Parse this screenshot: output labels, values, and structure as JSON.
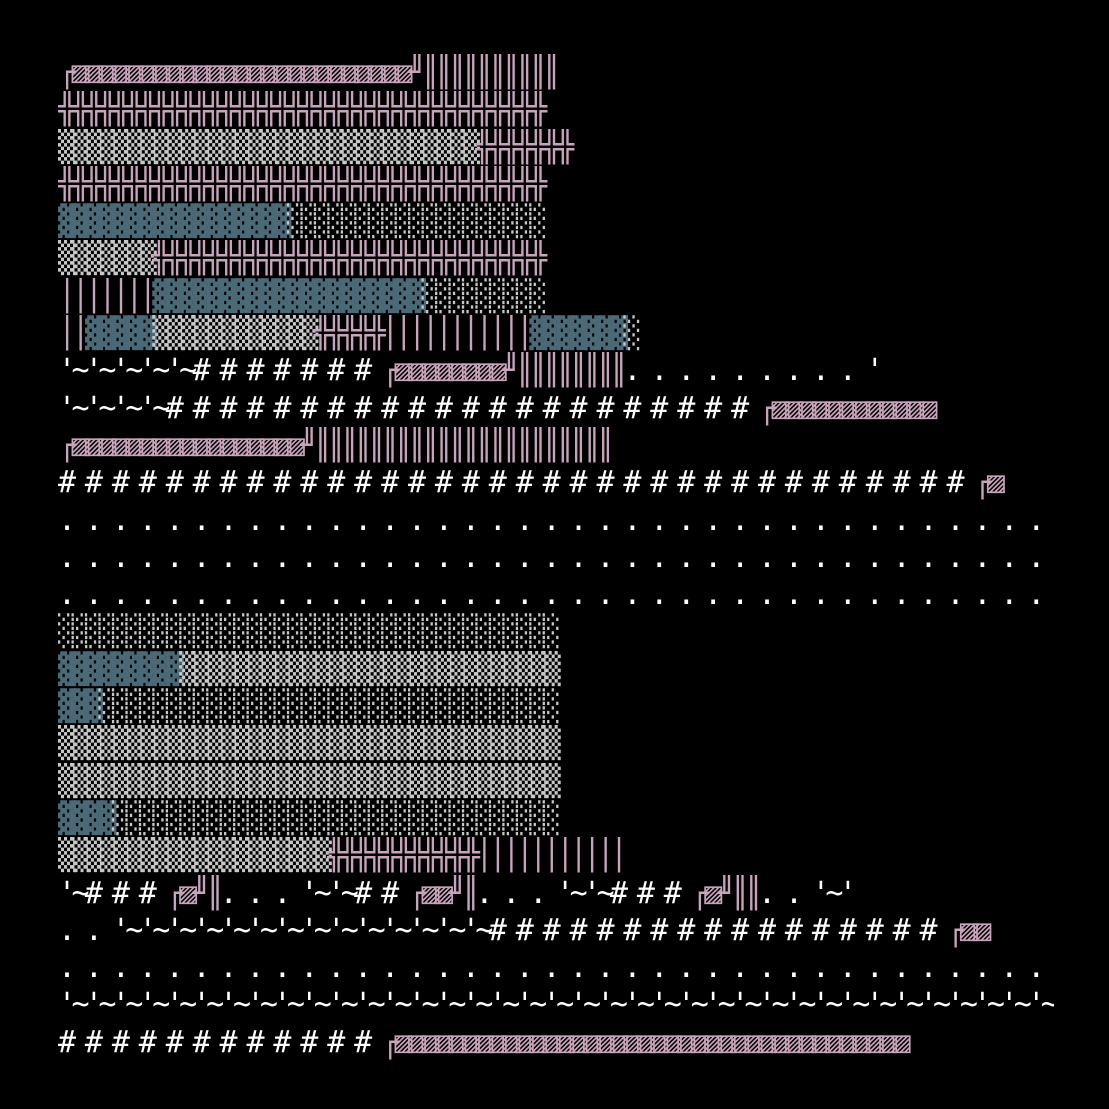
{
  "palette": {
    "background": "#000000",
    "text": "#ffffff",
    "rune": "#c8a4bc",
    "block": "#4a6a78",
    "shade": "#c8c8c8"
  },
  "art": {
    "rows": [
      [
        [
          "rune",
          "┌▨▨▨▨▨▨▨▨▨▨▨▨▨▨▨▨▨▨▨▨▨▨▨▨▨╜║║║║║║║║║║"
        ]
      ],
      [
        [
          "rune",
          "╬╬╬╬╬╬╬╬╬╬╬╬╬╬╬╬╬╬╬╬╬╬╬╬╬╬╬╬╬╬╬╬╬╬╬╬"
        ]
      ],
      [
        [
          "shade",
          "▒▒▒▒▒▒▒▒▒▒▒▒▒▒▒▒▒▒▒▒▒▒▒▒▒▒▒▒▒▒▒"
        ],
        [
          "rune",
          "╬╬╬╬╬╬╬"
        ]
      ],
      [
        [
          "rune",
          "╬╬╬╬╬╬╬╬╬╬╬╬╬╬╬╬╬╬╬╬╬╬╬╬╬╬╬╬╬╬╬╬╬╬╬╬"
        ]
      ],
      [
        [
          "block",
          "▓▓▓▓▓▓▓▓▓▓▓▓▓▓▓▓▓"
        ],
        [
          "shade",
          "░░░░░░░░░░░░░░░░░░░"
        ]
      ],
      [
        [
          "shade",
          "▒▒▒▒▒▒▒"
        ],
        [
          "rune",
          "╬╬╬╬╬╬╬╬╬╬╬╬╬╬╬╬╬╬╬╬╬╬╬╬╬╬╬╬╬"
        ]
      ],
      [
        [
          "rune",
          "│││││││"
        ],
        [
          "block",
          "▓▓▓▓▓▓▓▓▓▓▓▓▓▓▓▓▓▓▓▓"
        ],
        [
          "shade",
          "░░░░░░░░░"
        ]
      ],
      [
        [
          "rune",
          "││"
        ],
        [
          "block",
          "▓▓▓▓▓"
        ],
        [
          "shade",
          "▒▒▒▒▒▒▒▒▒▒▒▒"
        ],
        [
          "rune",
          "╬╬╬╬╬│││││││││││"
        ],
        [
          "block",
          "▓▓▓▓▓▓▓"
        ],
        [
          "shade",
          "░"
        ]
      ],
      [
        [
          "text",
          "'~'~'~'~'~# # # # # # # "
        ],
        [
          "rune",
          "┌▨▨▨▨▨▨▨▨╜║║║║║║║║"
        ],
        [
          "text",
          ". . . . . . . . . '"
        ]
      ],
      [
        [
          "text",
          "'~'~'~'~# # # # # # # # # # # # # # # # # # # # # # "
        ],
        [
          "rune",
          "┌▨▨▨▨▨▨▨▨▨▨▨▨"
        ]
      ],
      [
        [
          "rune",
          "┌▨▨▨▨▨▨▨▨▨▨▨▨▨▨▨▨▨╜║║║║║║║║║║║║║║║║║║║║║║"
        ]
      ],
      [
        [
          "text",
          "# # # # # # # # # # # # # # # # # # # # # # # # # # # # # # # # # # "
        ],
        [
          "rune",
          "┌▨"
        ]
      ],
      [
        [
          "text",
          ". . . . . . . . . . . . . . . . . . . . . . . . . . . . . . . . . . . . . ."
        ]
      ],
      [
        [
          "text",
          ". . . . . . . . . . . . . . . . . . . . . . . . . . . . . . . . . . . . . ."
        ]
      ],
      [
        [
          "text",
          ". . . . . . . . . . . . . . . . . . . . . . . . . . . . . . . . . . . . . ."
        ]
      ],
      [
        [
          "shade",
          "░░░░░░░░░░░░░░░░░░░░░░░░░░░░░░░░░░░░░"
        ]
      ],
      [
        [
          "block",
          "▓▓▓▓▓▓▓▓▓"
        ],
        [
          "shade",
          "▒▒▒▒▒▒▒▒▒▒▒▒▒▒▒▒▒▒▒▒▒▒▒▒▒▒▒▒"
        ]
      ],
      [
        [
          "block",
          "▓▓▓"
        ],
        [
          "shade",
          "░░░░░░░░░░░░░░░░░░░░░░░░░░░░░░░░░░"
        ]
      ],
      [
        [
          "shade",
          "▒▒▒▒▒▒▒▒▒▒▒▒▒▒▒▒▒▒▒▒▒▒▒▒▒▒▒▒▒▒▒▒▒▒▒▒▒"
        ]
      ],
      [
        [
          "shade",
          "▒▒▒▒▒▒▒▒▒▒▒▒▒▒▒▒▒▒▒▒▒▒▒▒▒▒▒▒▒▒▒▒▒▒▒▒▒"
        ]
      ],
      [
        [
          "block",
          "▓▓▓▓"
        ],
        [
          "shade",
          "░░░░░░░░░░░░░░░░░░░░░░░░░░░░░░░░░"
        ]
      ],
      [
        [
          "shade",
          "▒▒▒▒▒▒▒▒▒▒▒▒▒▒▒▒▒▒▒▒"
        ],
        [
          "rune",
          "╬╬╬╬╬╬╬╬╬╬╬│││││││││││"
        ]
      ],
      [
        [
          "text",
          "'~# # # "
        ],
        [
          "rune",
          "┌▨╜║"
        ],
        [
          "text",
          ". . . '~'~# # "
        ],
        [
          "rune",
          "┌▨▨╜║"
        ],
        [
          "text",
          ". . . '~'~# # # "
        ],
        [
          "rune",
          "┌▨╜║║"
        ],
        [
          "text",
          ". . '~'"
        ]
      ],
      [
        [
          "text",
          ". . '~'~'~'~'~'~'~'~'~'~'~'~'~'~# # # # # # # # # # # # # # # # # "
        ],
        [
          "rune",
          "┌▨▨"
        ]
      ],
      [
        [
          "text",
          ". . . . . . . . . . . . . . . . . . . . . . . . . . . . . . . . . . . . . '~'~'~'~'~'~'~'~'~'~'~'~'~'~'~'~'~'~'~'~'~'~'~'~'~'~'~'~'~'~"
        ]
      ],
      [
        [
          "text",
          "'~'~'~'~'~'~'~'~'~'~'~'~'~'~'~'~'~'~'~'~'~'~'~'~'~'~'~'~'~'~'~'~'~'~'~'~'~'~'~'~'~'~'~'~'~'~'~'~'~'~'~'~'~'~'~'~'~'~'~'~'~'~'~'~'~'~'~'~'~'~'~'~'~'~"
        ]
      ],
      [
        [
          "text",
          "# # # # # # # # # # # # "
        ],
        [
          "rune",
          "┌▨▨▨▨▨▨▨▨▨▨▨▨▨▨▨▨▨▨▨▨▨▨▨▨▨▨▨▨▨▨▨▨▨▨▨▨▨▨"
        ]
      ]
    ]
  }
}
